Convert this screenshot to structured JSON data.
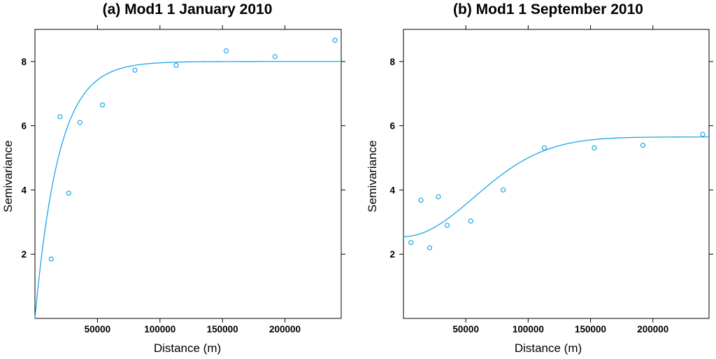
{
  "chart_data": [
    {
      "type": "scatter",
      "title": "(a) Mod1 1 January 2010",
      "xlabel": "Distance (m)",
      "ylabel": "Semivariance",
      "xlim": [
        0,
        245000
      ],
      "ylim": [
        0,
        9
      ],
      "xticks": [
        50000,
        100000,
        150000,
        200000
      ],
      "xtick_labels": [
        "50000",
        "100000",
        "150000",
        "200000"
      ],
      "yticks": [
        2,
        4,
        6,
        8
      ],
      "ytick_labels": [
        "2",
        "4",
        "6",
        "8"
      ],
      "grid": false,
      "color": "#1aa6e8",
      "series": [
        {
          "kind": "points",
          "x": [
            13000,
            20000,
            27000,
            36000,
            54000,
            80000,
            113000,
            153000,
            192000,
            240000
          ],
          "y": [
            1.85,
            6.28,
            3.9,
            6.1,
            6.65,
            7.73,
            7.88,
            8.33,
            8.15,
            8.66
          ]
        },
        {
          "kind": "fitted-line",
          "model": "exponential",
          "nugget": 0,
          "sill": 8.0,
          "range": 19000
        }
      ]
    },
    {
      "type": "scatter",
      "title": "(b) Mod1 1 September 2010",
      "xlabel": "Distance (m)",
      "ylabel": "Semivariance",
      "xlim": [
        0,
        245000
      ],
      "ylim": [
        0,
        9
      ],
      "xticks": [
        50000,
        100000,
        150000,
        200000
      ],
      "xtick_labels": [
        "50000",
        "100000",
        "150000",
        "200000"
      ],
      "yticks": [
        2,
        4,
        6,
        8
      ],
      "ytick_labels": [
        "2",
        "4",
        "6",
        "8"
      ],
      "grid": false,
      "color": "#1aa6e8",
      "series": [
        {
          "kind": "points",
          "x": [
            6000,
            14000,
            21000,
            28000,
            35000,
            54000,
            80000,
            113000,
            153000,
            192000,
            240000
          ],
          "y": [
            2.36,
            3.68,
            2.2,
            3.79,
            2.9,
            3.03,
            4.0,
            5.31,
            5.31,
            5.39,
            5.73
          ]
        },
        {
          "kind": "fitted-line",
          "model": "gaussian",
          "nugget": 2.55,
          "sill": 3.1,
          "range": 80000
        }
      ]
    }
  ]
}
